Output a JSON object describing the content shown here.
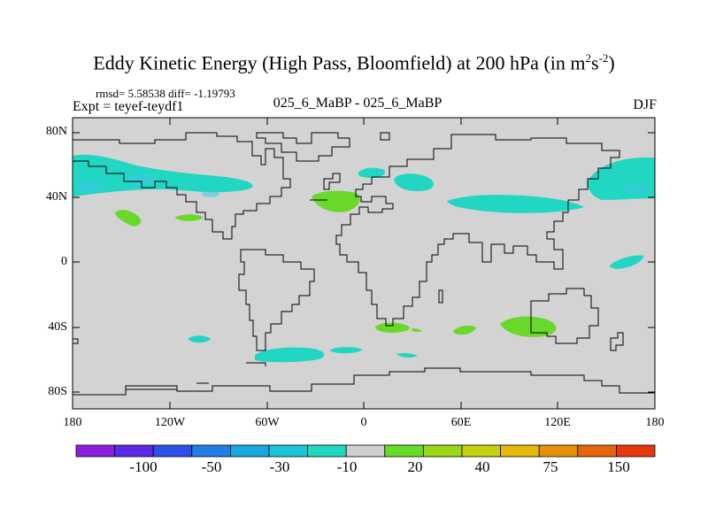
{
  "title": {
    "prefix": "Eddy Kinetic Energy (High Pass, Bloomfield) at 200 hPa (in m",
    "sup1": "2",
    "mid": "s",
    "sup2": "-2",
    "suffix": ")"
  },
  "stats": "rmsd= 5.58538 diff= -1.19793",
  "expt": "Expt = teyef-teydf1",
  "subtitle": "025_6_MaBP - 025_6_MaBP",
  "season": "DJF",
  "lat_labels": [
    "80N",
    "40N",
    "0",
    "40S",
    "80S"
  ],
  "lon_labels": [
    "180",
    "120W",
    "60W",
    "0",
    "60E",
    "120E",
    "180"
  ],
  "colorbar": {
    "colors": [
      "#8a1fe0",
      "#5a2ae8",
      "#2f4fe6",
      "#1f7fe6",
      "#18a8e0",
      "#18c6d8",
      "#20d8c0",
      "#cfcfcf",
      "#66dc28",
      "#98d818",
      "#c4d010",
      "#e6b80a",
      "#e6900a",
      "#e6640a",
      "#e6380a"
    ],
    "labels": [
      "-100",
      "-50",
      "-30",
      "-10",
      "20",
      "40",
      "75",
      "150"
    ]
  },
  "colors": {
    "land_bg": "#d3d3d3",
    "cyan": "#22d6c4",
    "green": "#6ad82a",
    "light_cyan": "#40d2e6"
  }
}
